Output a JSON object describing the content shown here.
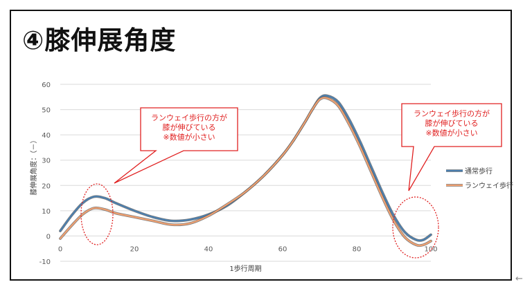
{
  "slide": {
    "title": "④膝伸展角度",
    "nav_arrow": "←"
  },
  "callouts": [
    {
      "lines": [
        "ランウェイ歩行の方が",
        "膝が伸びている",
        "※数値が小さい"
      ]
    },
    {
      "lines": [
        "ランウェイ歩行の方が",
        "膝が伸びている",
        "※数値が小さい"
      ]
    }
  ],
  "colors": {
    "series_normal": "#4a7fb0",
    "series_runway": "#f0a070",
    "callout_red": "#e02020",
    "grid": "#d9d9d9",
    "axis_text": "#595959"
  },
  "chart_data": {
    "type": "line",
    "xlabel": "1歩行周期",
    "ylabel": "膝伸展角度：（－）",
    "xlim": [
      0,
      100
    ],
    "ylim": [
      -10,
      60
    ],
    "xticks": [
      0,
      20,
      40,
      60,
      80,
      100
    ],
    "yticks": [
      -10,
      0,
      10,
      20,
      30,
      40,
      50,
      60
    ],
    "grid": "horizontal",
    "legend_position": "right",
    "series": [
      {
        "name": "通常歩行",
        "x": [
          0,
          3,
          6,
          9,
          12,
          15,
          20,
          25,
          30,
          35,
          40,
          45,
          50,
          55,
          60,
          63,
          66,
          68,
          70,
          72,
          75,
          78,
          81,
          84,
          87,
          90,
          93,
          96,
          98,
          100
        ],
        "y": [
          2,
          8,
          13,
          15.5,
          15,
          13,
          10,
          7.5,
          6,
          6.5,
          8.5,
          12,
          17.5,
          24,
          32,
          38,
          45,
          50,
          54.5,
          55.5,
          53,
          46,
          37,
          27,
          17,
          8,
          1.5,
          -1.5,
          -1.5,
          0.5
        ]
      },
      {
        "name": "ランウェイ歩行",
        "x": [
          0,
          3,
          6,
          9,
          12,
          15,
          20,
          25,
          30,
          35,
          40,
          45,
          50,
          55,
          60,
          63,
          66,
          68,
          70,
          72,
          75,
          78,
          81,
          84,
          87,
          90,
          93,
          96,
          98,
          100
        ],
        "y": [
          -1,
          4,
          8.5,
          11,
          10.5,
          9,
          7.5,
          6,
          4.5,
          5,
          8,
          12.5,
          17.5,
          24,
          32,
          38,
          45,
          50,
          54,
          54.5,
          51.5,
          44,
          35,
          25,
          15,
          6,
          -0.5,
          -3.5,
          -3.5,
          -2
        ]
      }
    ]
  }
}
